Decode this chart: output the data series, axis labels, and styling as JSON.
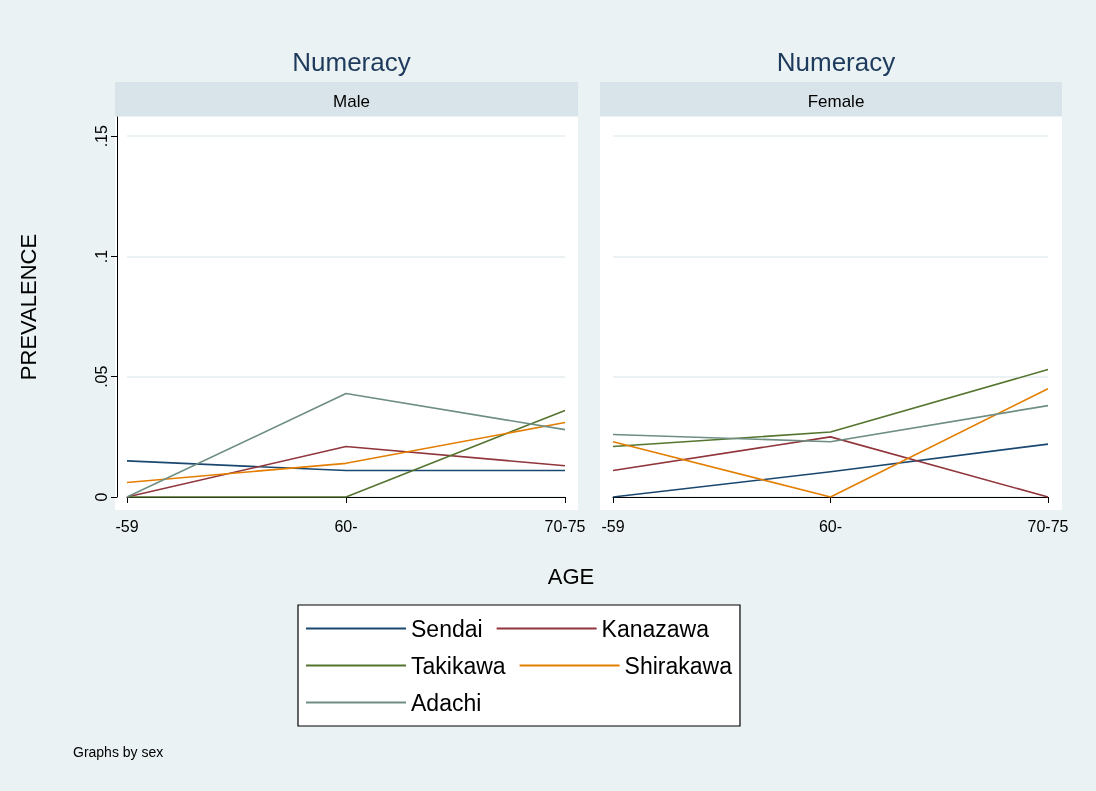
{
  "chart_data": [
    {
      "type": "line",
      "title": "Numeracy",
      "subtitle": "Male",
      "xlabel": "AGE",
      "ylabel": "PREVALENCE",
      "annotations": [
        "Graphs by sex"
      ],
      "categories": [
        "-59",
        "60-",
        "70-75"
      ],
      "series": [
        {
          "name": "Sendai",
          "color": "#1a476f",
          "values": [
            0.015,
            0.011,
            0.011
          ]
        },
        {
          "name": "Kanazawa",
          "color": "#90353b",
          "values": [
            0,
            0.021,
            0.013
          ]
        },
        {
          "name": "Takikawa",
          "color": "#55752f",
          "values": [
            0,
            0,
            0.036
          ]
        },
        {
          "name": "Shirakawa",
          "color": "#e37e00",
          "values": [
            0.006,
            0.014,
            0.031
          ]
        },
        {
          "name": "Adachi",
          "color": "#6e8e84",
          "values": [
            0,
            0.043,
            0.028
          ]
        }
      ],
      "ylim": [
        0,
        0.158
      ],
      "yticks": [
        0,
        {
          "value": 0.05,
          "label": ".05"
        },
        {
          "value": 0.1,
          "label": ".1"
        },
        {
          "value": 0.15,
          "label": ".15"
        }
      ],
      "grid": "y",
      "legend": "bottom"
    },
    {
      "type": "line",
      "title": "Numeracy",
      "subtitle": "Female",
      "categories": [
        "-59",
        "60-",
        "70-75"
      ],
      "series": [
        {
          "color": "#1a476f",
          "values": [
            0,
            0.0105,
            0.022
          ]
        },
        {
          "color": "#90353b",
          "values": [
            0.011,
            0.025,
            0
          ]
        },
        {
          "color": "#55752f",
          "values": [
            0.021,
            0.027,
            0.053
          ]
        },
        {
          "color": "#e37e00",
          "values": [
            0.023,
            0,
            0.045
          ]
        },
        {
          "color": "#6e8e84",
          "values": [
            0.026,
            0.023,
            0.038
          ]
        }
      ],
      "ylim": [
        0,
        0.158
      ],
      "yticks": [
        {
          "value": 0,
          "label": null
        },
        {
          "value": 0.05,
          "label": null
        },
        {
          "value": 0.1,
          "label": null
        },
        {
          "value": 0.15,
          "label": null
        }
      ],
      "grid": "y",
      "tick_labels": "x"
    }
  ]
}
